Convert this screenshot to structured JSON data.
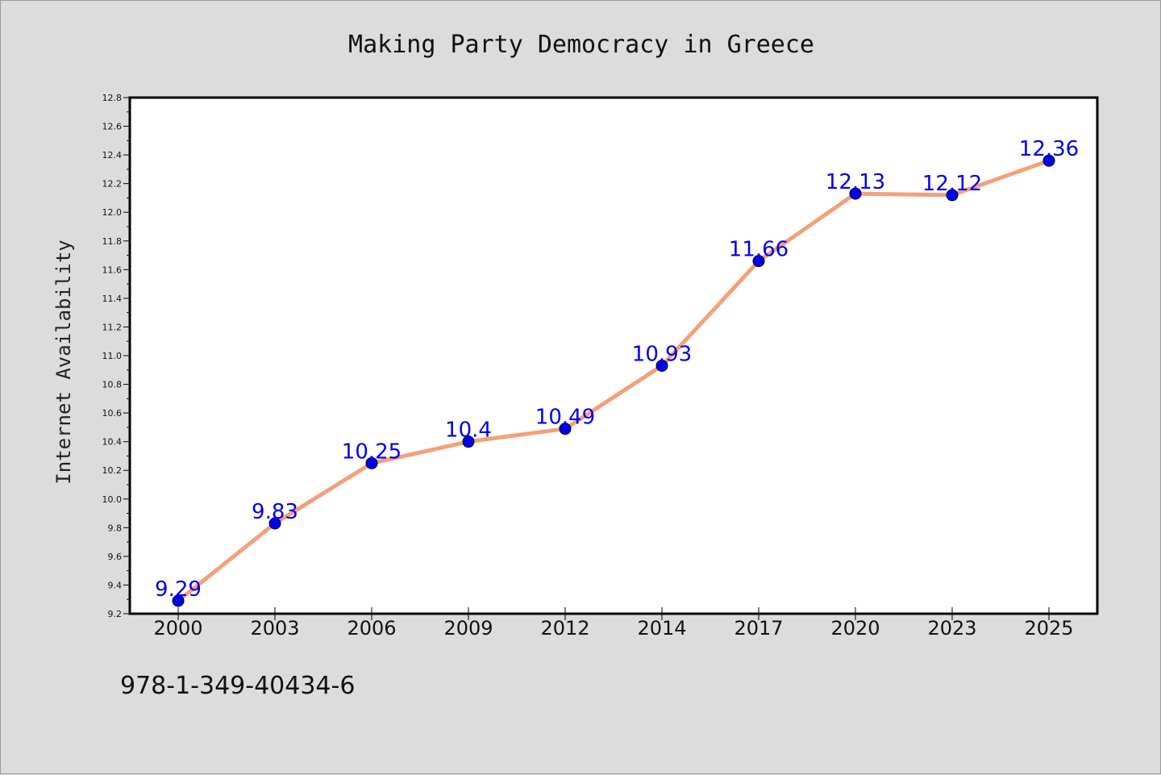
{
  "chart_data": {
    "type": "line",
    "title": "Making Party Democracy in Greece",
    "xlabel": "",
    "ylabel": "Internet Availability",
    "categories": [
      "2000",
      "2003",
      "2006",
      "2009",
      "2012",
      "2014",
      "2017",
      "2020",
      "2023",
      "2025"
    ],
    "values": [
      9.29,
      9.83,
      10.25,
      10.4,
      10.49,
      10.93,
      11.66,
      12.13,
      12.12,
      12.36
    ],
    "data_labels": [
      "9.29",
      "9.83",
      "10.25",
      "10.4",
      "10.49",
      "10.93",
      "11.66",
      "12.13",
      "12.12",
      "12.36"
    ],
    "ylim": [
      9.2,
      12.8
    ],
    "yticks": [
      "9.2",
      "9.4",
      "9.6",
      "9.8",
      "10.0",
      "10.2",
      "10.4",
      "10.6",
      "10.8",
      "11.0",
      "11.2",
      "11.4",
      "11.6",
      "11.8",
      "12.0",
      "12.2",
      "12.4",
      "12.6",
      "12.8"
    ],
    "grid": false,
    "line_color": "#f4a07a",
    "marker_color": "#0000ee",
    "label_color": "#0000ee",
    "plot_background": "#ffffff",
    "figure_background": "#dcdcdc"
  },
  "footer": {
    "code": "978-1-349-40434-6"
  }
}
